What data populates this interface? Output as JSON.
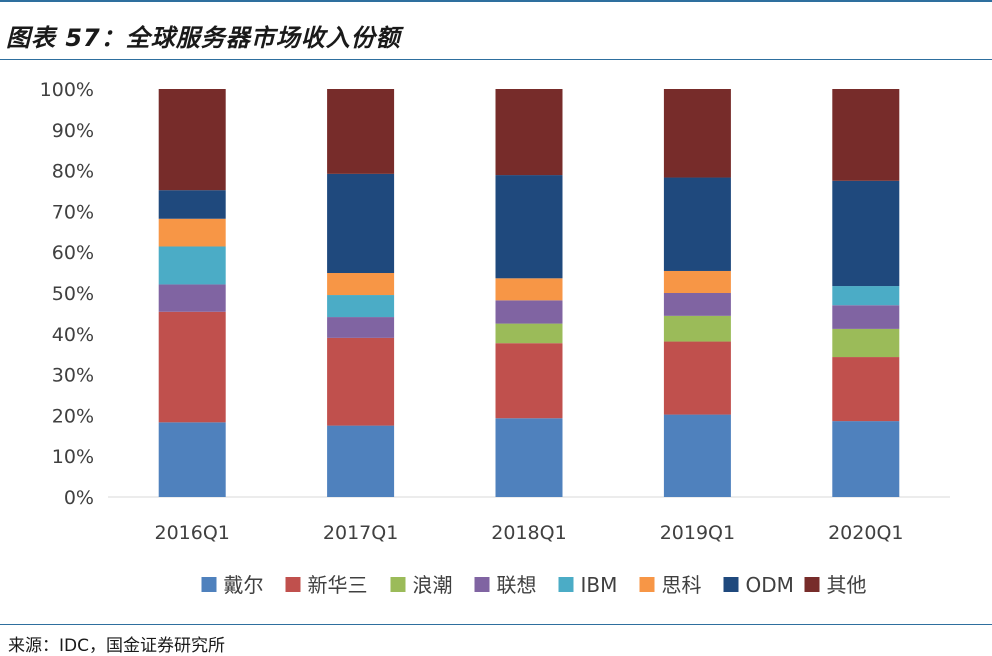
{
  "header": {
    "title": "图表 57：全球服务器市场收入份额"
  },
  "footer": {
    "source": "来源：IDC，国金证券研究所"
  },
  "chart_data": {
    "type": "bar",
    "stacked": true,
    "title": "图表 57：全球服务器市场收入份额",
    "xlabel": "",
    "ylabel": "",
    "categories": [
      "2016Q1",
      "2017Q1",
      "2018Q1",
      "2019Q1",
      "2020Q1"
    ],
    "ylim": [
      0,
      100
    ],
    "yticks": [
      "0%",
      "10%",
      "20%",
      "30%",
      "40%",
      "50%",
      "60%",
      "70%",
      "80%",
      "90%",
      "100%"
    ],
    "grid": false,
    "legend_position": "bottom",
    "series": [
      {
        "name": "戴尔",
        "color": "#4f81bd",
        "values": [
          18.3,
          17.5,
          19.3,
          20.2,
          18.6
        ]
      },
      {
        "name": "新华三",
        "color": "#c0504d",
        "values": [
          27.1,
          21.5,
          18.4,
          17.9,
          15.7
        ]
      },
      {
        "name": "浪潮",
        "color": "#9bbb59",
        "values": [
          0,
          0,
          4.8,
          6.3,
          6.9
        ]
      },
      {
        "name": "联想",
        "color": "#8064a2",
        "values": [
          6.7,
          5.1,
          5.7,
          5.6,
          5.8
        ]
      },
      {
        "name": "IBM",
        "color": "#4bacc6",
        "values": [
          9.3,
          5.4,
          0,
          0,
          4.7
        ]
      },
      {
        "name": "思科",
        "color": "#f79646",
        "values": [
          6.8,
          5.4,
          5.4,
          5.4,
          0
        ]
      },
      {
        "name": "ODM",
        "color": "#1f497d",
        "values": [
          7.0,
          24.3,
          25.3,
          22.9,
          25.8
        ]
      },
      {
        "name": "其他",
        "color": "#772c2a",
        "values": [
          24.8,
          20.8,
          21.1,
          21.7,
          22.5
        ]
      }
    ]
  }
}
